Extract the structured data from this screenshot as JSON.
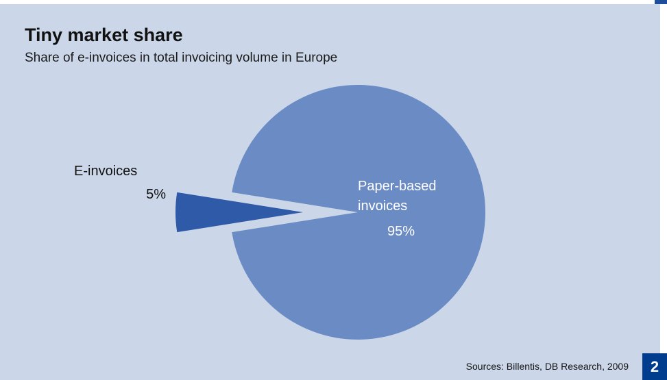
{
  "title": "Tiny market share",
  "subtitle": "Share of e-invoices in total invoicing volume in Europe",
  "source": "Sources: Billentis, DB Research, 2009",
  "page_number": "2",
  "colors": {
    "background": "#cbd7e9",
    "paper_slice": "#6a8bc4",
    "einvoice_slice": "#2e5aa8",
    "badge": "#003d8f"
  },
  "chart_data": {
    "type": "pie",
    "title": "Tiny market share",
    "subtitle": "Share of e-invoices in total invoicing volume in Europe",
    "slices": [
      {
        "label": "Paper-based invoices",
        "value": 95,
        "value_label": "95%",
        "exploded": false
      },
      {
        "label": "E-invoices",
        "value": 5,
        "value_label": "5%",
        "exploded": true
      }
    ],
    "source": "Sources: Billentis, DB Research, 2009"
  }
}
